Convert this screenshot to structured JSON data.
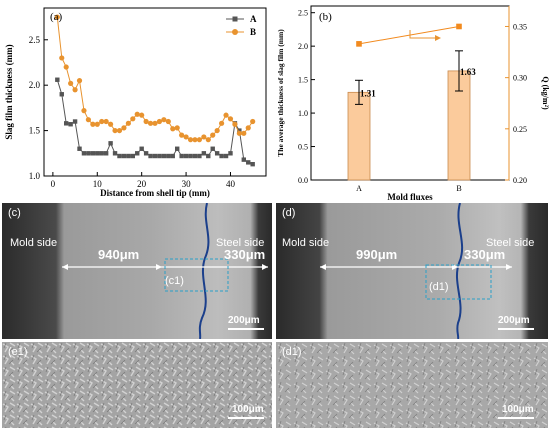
{
  "chart_data": [
    {
      "type": "line",
      "panel_label": "(a)",
      "xlabel": "Distance from shell tip (mm)",
      "ylabel": "Slag film thickness (mm)",
      "xlim": [
        -2,
        48
      ],
      "ylim": [
        1.0,
        2.85
      ],
      "xticks": [
        "0",
        "10",
        "20",
        "30",
        "40"
      ],
      "yticks": [
        "1.0",
        "1.5",
        "2.0",
        "2.5"
      ],
      "legend_position": "top-right",
      "series": [
        {
          "name": "A",
          "color": "#555555",
          "marker": "square",
          "points": [
            [
              1,
              2.06
            ],
            [
              2,
              1.9
            ],
            [
              3,
              1.58
            ],
            [
              4,
              1.57
            ],
            [
              5,
              1.6
            ],
            [
              6,
              1.3
            ],
            [
              7,
              1.25
            ],
            [
              8,
              1.25
            ],
            [
              9,
              1.25
            ],
            [
              10,
              1.25
            ],
            [
              11,
              1.25
            ],
            [
              12,
              1.25
            ],
            [
              13,
              1.36
            ],
            [
              14,
              1.25
            ],
            [
              15,
              1.22
            ],
            [
              16,
              1.22
            ],
            [
              17,
              1.22
            ],
            [
              18,
              1.22
            ],
            [
              19,
              1.25
            ],
            [
              20,
              1.3
            ],
            [
              21,
              1.25
            ],
            [
              22,
              1.22
            ],
            [
              23,
              1.22
            ],
            [
              24,
              1.22
            ],
            [
              25,
              1.22
            ],
            [
              26,
              1.22
            ],
            [
              27,
              1.22
            ],
            [
              28,
              1.3
            ],
            [
              29,
              1.22
            ],
            [
              30,
              1.22
            ],
            [
              31,
              1.22
            ],
            [
              32,
              1.22
            ],
            [
              33,
              1.22
            ],
            [
              34,
              1.25
            ],
            [
              35,
              1.22
            ],
            [
              36,
              1.3
            ],
            [
              37,
              1.25
            ],
            [
              38,
              1.22
            ],
            [
              39,
              1.22
            ],
            [
              40,
              1.25
            ],
            [
              41,
              1.58
            ],
            [
              42,
              1.5
            ],
            [
              43,
              1.18
            ],
            [
              44,
              1.15
            ],
            [
              45,
              1.13
            ]
          ]
        },
        {
          "name": "B",
          "color": "#E8932F",
          "marker": "circle",
          "points": [
            [
              1,
              2.75
            ],
            [
              2,
              2.3
            ],
            [
              3,
              2.2
            ],
            [
              4,
              2.02
            ],
            [
              5,
              1.95
            ],
            [
              6,
              2.05
            ],
            [
              7,
              1.72
            ],
            [
              8,
              1.62
            ],
            [
              9,
              1.57
            ],
            [
              10,
              1.57
            ],
            [
              11,
              1.6
            ],
            [
              12,
              1.6
            ],
            [
              13,
              1.57
            ],
            [
              14,
              1.5
            ],
            [
              15,
              1.5
            ],
            [
              16,
              1.53
            ],
            [
              17,
              1.58
            ],
            [
              18,
              1.63
            ],
            [
              19,
              1.68
            ],
            [
              20,
              1.67
            ],
            [
              21,
              1.6
            ],
            [
              22,
              1.58
            ],
            [
              23,
              1.58
            ],
            [
              24,
              1.6
            ],
            [
              25,
              1.62
            ],
            [
              26,
              1.6
            ],
            [
              27,
              1.52
            ],
            [
              28,
              1.53
            ],
            [
              29,
              1.45
            ],
            [
              30,
              1.43
            ],
            [
              31,
              1.4
            ],
            [
              32,
              1.4
            ],
            [
              33,
              1.4
            ],
            [
              34,
              1.43
            ],
            [
              35,
              1.4
            ],
            [
              36,
              1.45
            ],
            [
              37,
              1.5
            ],
            [
              38,
              1.58
            ],
            [
              39,
              1.67
            ],
            [
              40,
              1.63
            ],
            [
              41,
              1.57
            ],
            [
              42,
              1.47
            ],
            [
              43,
              1.47
            ],
            [
              44,
              1.53
            ],
            [
              45,
              1.6
            ]
          ]
        }
      ]
    },
    {
      "type": "bar",
      "panel_label": "(b)",
      "xlabel": "Mold fluxes",
      "ylabel": "The average thickness of slag film (mm)",
      "y2label": "Q (kg/m²)",
      "categories": [
        "A",
        "B"
      ],
      "ylim": [
        0.0,
        2.6
      ],
      "yticks": [
        "0.0",
        "0.5",
        "1.0",
        "1.5",
        "2.0",
        "2.5"
      ],
      "y2lim": [
        0.2,
        0.37
      ],
      "y2ticks": [
        "0.20",
        "0.25",
        "0.30",
        "0.35"
      ],
      "series": [
        {
          "name": "Average slag film thickness",
          "values": [
            1.31,
            1.63
          ],
          "errors": [
            0.18,
            0.3
          ],
          "labels": [
            "1.31",
            "1.63"
          ],
          "color": "#FBCB9C"
        },
        {
          "name": "Q",
          "values": [
            0.333,
            0.35
          ],
          "color": "#F28A1E",
          "axis": "right",
          "marker": "square"
        }
      ]
    }
  ],
  "images": {
    "c": {
      "label": "(c)",
      "left_text": "Mold side",
      "right_text": "Steel side",
      "dim_left": "940μm",
      "dim_right": "330μm",
      "inset": "(c1)",
      "scale": "200μm"
    },
    "d": {
      "label": "(d)",
      "left_text": "Mold side",
      "right_text": "Steel side",
      "dim_left": "990μm",
      "dim_right": "330μm",
      "inset": "(d1)",
      "scale": "200μm"
    },
    "e1": {
      "label": "(e1)",
      "scale": "100μm"
    },
    "d1": {
      "label": "(d1)",
      "scale": "100μm"
    }
  }
}
